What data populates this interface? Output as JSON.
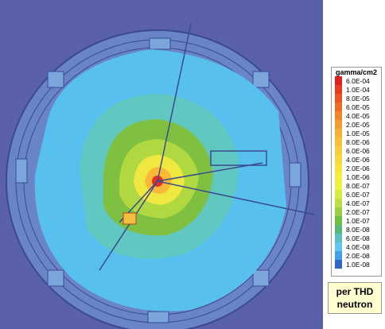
{
  "legend": {
    "title": "gamma/cm2",
    "entries": [
      {
        "label": "6.0E-04",
        "color": "#e02020"
      },
      {
        "label": "1.0E-04",
        "color": "#e83c20"
      },
      {
        "label": "8.0E-05",
        "color": "#ee5420"
      },
      {
        "label": "6.0E-05",
        "color": "#f06c24"
      },
      {
        "label": "4.0E-05",
        "color": "#f2842c"
      },
      {
        "label": "2.0E-05",
        "color": "#f49c30"
      },
      {
        "label": "1.0E-05",
        "color": "#f6b034"
      },
      {
        "label": "8.0E-06",
        "color": "#f8c038"
      },
      {
        "label": "6.0E-06",
        "color": "#f8cc3a"
      },
      {
        "label": "4.0E-06",
        "color": "#f8d83c"
      },
      {
        "label": "2.0E-06",
        "color": "#f8e23e"
      },
      {
        "label": "1.0E-06",
        "color": "#f8ec40"
      },
      {
        "label": "8.0E-07",
        "color": "#f0f040"
      },
      {
        "label": "6.0E-07",
        "color": "#d8ec40"
      },
      {
        "label": "4.0E-07",
        "color": "#b8e040"
      },
      {
        "label": "2.0E-07",
        "color": "#98d040"
      },
      {
        "label": "1.0E-07",
        "color": "#70c040"
      },
      {
        "label": "8.0E-08",
        "color": "#58b878"
      },
      {
        "label": "6.0E-08",
        "color": "#58c0c0"
      },
      {
        "label": "4.0E-08",
        "color": "#60c8f0"
      },
      {
        "label": "2.0E-08",
        "color": "#40a0e8"
      },
      {
        "label": "1.0E-08",
        "color": "#3068c8"
      }
    ]
  },
  "caption": "per THD neutron"
}
